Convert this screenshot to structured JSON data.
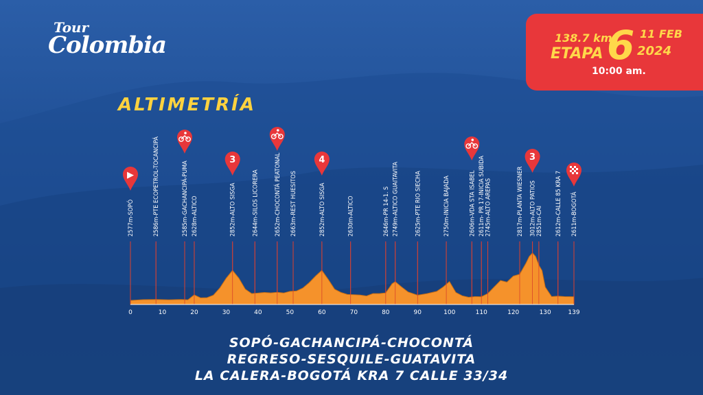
{
  "logo": {
    "line1": "Tour",
    "line2": "Colombia"
  },
  "stage": {
    "distance": "138.7 km.",
    "label": "ETAPA",
    "number": "6",
    "date": "11 FEB",
    "year": "2024",
    "time": "10:00 am."
  },
  "colors": {
    "profile_fill": "#f5922b",
    "profile_stroke": "#c96f14",
    "marker": "#e8373a",
    "title": "#ffd23f",
    "stage_box": "#e8373a"
  },
  "chart_data": {
    "type": "area",
    "title": "ALTIMETRÍA",
    "xlabel": "",
    "ylabel": "",
    "xlim": [
      0,
      139
    ],
    "x_ticks": [
      0,
      10,
      20,
      30,
      40,
      50,
      60,
      70,
      80,
      90,
      100,
      110,
      120,
      130,
      139
    ],
    "profile": {
      "x": [
        0,
        4,
        8,
        12,
        16,
        18,
        20,
        22,
        24,
        26,
        28,
        30,
        32,
        34,
        36,
        38,
        40,
        42,
        44,
        46,
        48,
        50,
        52,
        54,
        56,
        58,
        60,
        62,
        64,
        66,
        68,
        70,
        72,
        74,
        76,
        78,
        80,
        82,
        83,
        85,
        87,
        90,
        93,
        96,
        98,
        100,
        102,
        104,
        106,
        108,
        110,
        112,
        114,
        116,
        118,
        120,
        122,
        124,
        125,
        126,
        127,
        128,
        129,
        130,
        132,
        134,
        136,
        139
      ],
      "y": [
        2577,
        2584,
        2586,
        2583,
        2585,
        2582,
        2628,
        2600,
        2602,
        2625,
        2690,
        2780,
        2852,
        2780,
        2680,
        2640,
        2644,
        2650,
        2646,
        2652,
        2645,
        2660,
        2663,
        2690,
        2740,
        2800,
        2852,
        2770,
        2680,
        2650,
        2632,
        2630,
        2626,
        2618,
        2640,
        2640,
        2646,
        2730,
        2749,
        2700,
        2655,
        2625,
        2640,
        2660,
        2700,
        2750,
        2650,
        2620,
        2606,
        2612,
        2611,
        2640,
        2700,
        2760,
        2745,
        2800,
        2817,
        2920,
        2980,
        3012,
        2980,
        2900,
        2851,
        2700,
        2612,
        2616,
        2612,
        2611
      ]
    },
    "labels": [
      {
        "km": 0,
        "text": "2577m-SOPÓ"
      },
      {
        "km": 8,
        "text": "2586m-PTE ECOPETROL-TOCANCIPÁ"
      },
      {
        "km": 17,
        "text": "2585m-GACHANCIPÁ-PUMA"
      },
      {
        "km": 20,
        "text": "2628m-ALTICO"
      },
      {
        "km": 32,
        "text": "2852m-ALTO SISGA"
      },
      {
        "km": 39,
        "text": "2644m-SILOS LICORERA"
      },
      {
        "km": 46,
        "text": "2652m-CHOCONTÁ PEATONAL"
      },
      {
        "km": 51,
        "text": "2663m-REST HUESITOS"
      },
      {
        "km": 60,
        "text": "2852m-ALTO SISGA"
      },
      {
        "km": 69,
        "text": "2630m-ALTICO"
      },
      {
        "km": 80,
        "text": "2646m-PR 14-1. S"
      },
      {
        "km": 83,
        "text": "2749m-ALTICO GUAITAVITA"
      },
      {
        "km": 90,
        "text": "2625m-PTE RIO SIECHA"
      },
      {
        "km": 99,
        "text": "2750m-INICIA BAJADA"
      },
      {
        "km": 107,
        "text": "2606m-VDA STA ISABEL"
      },
      {
        "km": 110,
        "text": "2611m- PR 17-INICIA SUBIDA"
      },
      {
        "km": 112,
        "text": "2745m-ALTO AREPAS"
      },
      {
        "km": 122,
        "text": "2817m-PLANTA WIESNER"
      },
      {
        "km": 126,
        "text": "3012m-ALTO PATIOS"
      },
      {
        "km": 128,
        "text": "2851m-CAI"
      },
      {
        "km": 134,
        "text": "2612m-CALLE 85 KRA 7"
      },
      {
        "km": 139,
        "text": "2611m-BOGOTÁ"
      }
    ],
    "markers": [
      {
        "km": 0,
        "symbol": "▶",
        "icon": "start-icon"
      },
      {
        "km": 17,
        "symbol": "",
        "icon": "sprint-icon"
      },
      {
        "km": 32,
        "symbol": "3",
        "icon": "climb-category-3-icon"
      },
      {
        "km": 46,
        "symbol": "",
        "icon": "cyclist-icon"
      },
      {
        "km": 60,
        "symbol": "4",
        "icon": "climb-category-4-icon"
      },
      {
        "km": 107,
        "symbol": "",
        "icon": "cyclist-icon"
      },
      {
        "km": 126,
        "symbol": "3",
        "icon": "climb-category-3-icon"
      },
      {
        "km": 139,
        "symbol": "",
        "icon": "finish-flag-icon"
      }
    ]
  },
  "route": {
    "line1": "SOPÓ-GACHANCIPÁ-CHOCONTÁ",
    "line2": "REGRESO-SESQUILE-GUATAVITA",
    "line3": "LA CALERA-BOGOTÁ KRA 7 CALLE 33/34"
  }
}
